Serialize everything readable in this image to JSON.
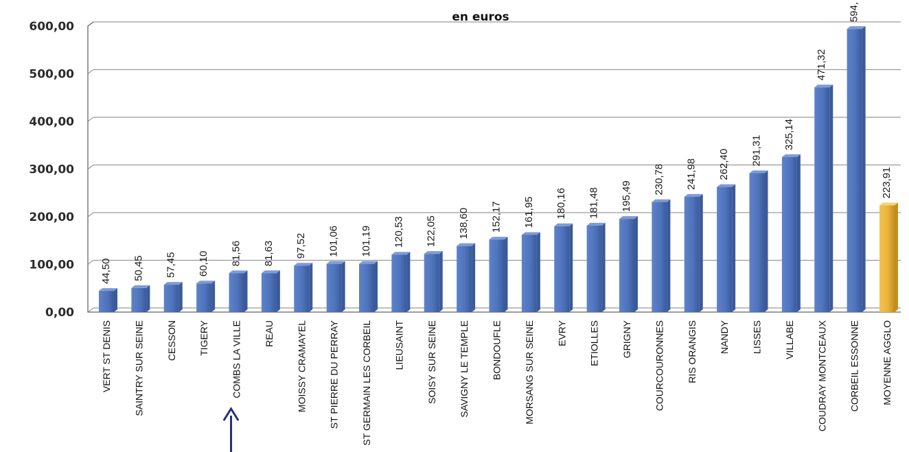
{
  "chart_data": {
    "type": "bar",
    "title": "",
    "subtitle": "en euros",
    "xlabel": "",
    "ylabel": "",
    "ylim": [
      0,
      600
    ],
    "yticks": [
      "0,00",
      "100,00",
      "200,00",
      "300,00",
      "400,00",
      "500,00",
      "600,00"
    ],
    "grid": true,
    "legend": "none",
    "categories": [
      "VERT ST DENIS",
      "SAINTRY SUR SEINE",
      "CESSON",
      "TIGERY",
      "COMBS LA VILLE",
      "REAU",
      "MOISSY CRAMAYEL",
      "ST PIERRE DU PERRAY",
      "ST GERMAIN LES CORBEIL",
      "LIEUSAINT",
      "SOISY SUR SEINE",
      "SAVIGNY LE TEMPLE",
      "BONDOUFLE",
      "MORSANG SUR SEINE",
      "EVRY",
      "ETIOLLES",
      "GRIGNY",
      "COURCOURONNES",
      "RIS ORANGIS",
      "NANDY",
      "LISSES",
      "VILLABE",
      "COUDRAY MONTCEAUX",
      "CORBEIL ESSONNE",
      "MOYENNE AGGLO"
    ],
    "values": [
      44.5,
      50.45,
      57.45,
      60.1,
      81.56,
      81.63,
      97.52,
      101.06,
      101.19,
      120.53,
      122.05,
      138.6,
      152.17,
      161.95,
      180.16,
      181.48,
      195.49,
      230.78,
      241.98,
      262.4,
      291.31,
      325.14,
      471.32,
      594.0,
      223.91
    ],
    "value_labels": [
      "44,50",
      "50,45",
      "57,45",
      "60,10",
      "81,56",
      "81,63",
      "97,52",
      "101,06",
      "101,19",
      "120,53",
      "122,05",
      "138,60",
      "152,17",
      "161,95",
      "180,16",
      "181,48",
      "195,49",
      "230,78",
      "241,98",
      "262,40",
      "291,31",
      "325,14",
      "471,32",
      "594,",
      "223,91"
    ],
    "colors": {
      "bar": "#4f74bd",
      "bar_dark": "#3a5a9a",
      "highlight_bar": "#e8b33c",
      "highlight_bar_dark": "#c48f1e",
      "arrow": "#26307a"
    },
    "highlight_index": 24,
    "arrow_target": "COMBS LA VILLE"
  }
}
